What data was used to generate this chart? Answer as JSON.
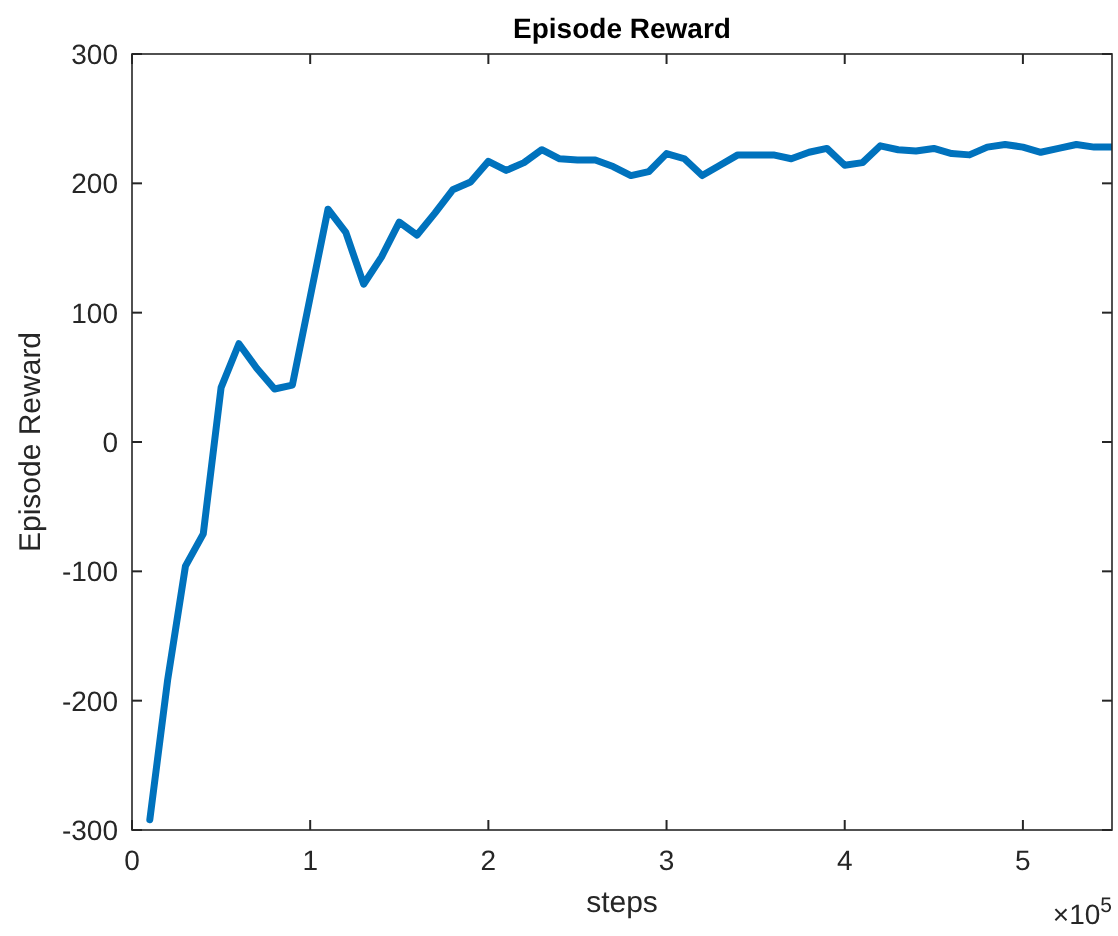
{
  "chart_data": {
    "type": "line",
    "title": "Episode Reward",
    "xlabel": "steps",
    "ylabel": "Episode Reward",
    "annotations": [
      "×10$^{5}$"
    ],
    "x": [
      0.1,
      0.2,
      0.3,
      0.4,
      0.5,
      0.6,
      0.7,
      0.8,
      0.9,
      1.0,
      1.1,
      1.2,
      1.3,
      1.4,
      1.5,
      1.6,
      1.7,
      1.8,
      1.9,
      2.0,
      2.1,
      2.2,
      2.3,
      2.4,
      2.5,
      2.6,
      2.7,
      2.8,
      2.9,
      3.0,
      3.1,
      3.2,
      3.3,
      3.4,
      3.5,
      3.6,
      3.7,
      3.8,
      3.9,
      4.0,
      4.1,
      4.2,
      4.3,
      4.4,
      4.5,
      4.6,
      4.7,
      4.8,
      4.9,
      5.0,
      5.1,
      5.2,
      5.3,
      5.4,
      5.5
    ],
    "series": [
      {
        "color": "#0072bd",
        "values": [
          -292,
          -184,
          -96,
          -71,
          42,
          76,
          57,
          41,
          44,
          112,
          180,
          162,
          122,
          143,
          170,
          160,
          177,
          195,
          201,
          217,
          210,
          216,
          226,
          219,
          218,
          218,
          213,
          206,
          209,
          223,
          219,
          206,
          214,
          222,
          222,
          222,
          219,
          224,
          227,
          214,
          216,
          229,
          226,
          225,
          227,
          223,
          222,
          228,
          230,
          228,
          224,
          227,
          230,
          228,
          228
        ]
      }
    ],
    "xlim": [
      0,
      5.5
    ],
    "xticks": [
      0,
      1,
      2,
      3,
      4,
      5
    ],
    "ylim": [
      -300,
      300
    ],
    "yticks": [
      -300,
      -200,
      -100,
      0,
      100,
      200,
      300
    ],
    "grid": false,
    "marker": "none",
    "line_style": "solid"
  }
}
